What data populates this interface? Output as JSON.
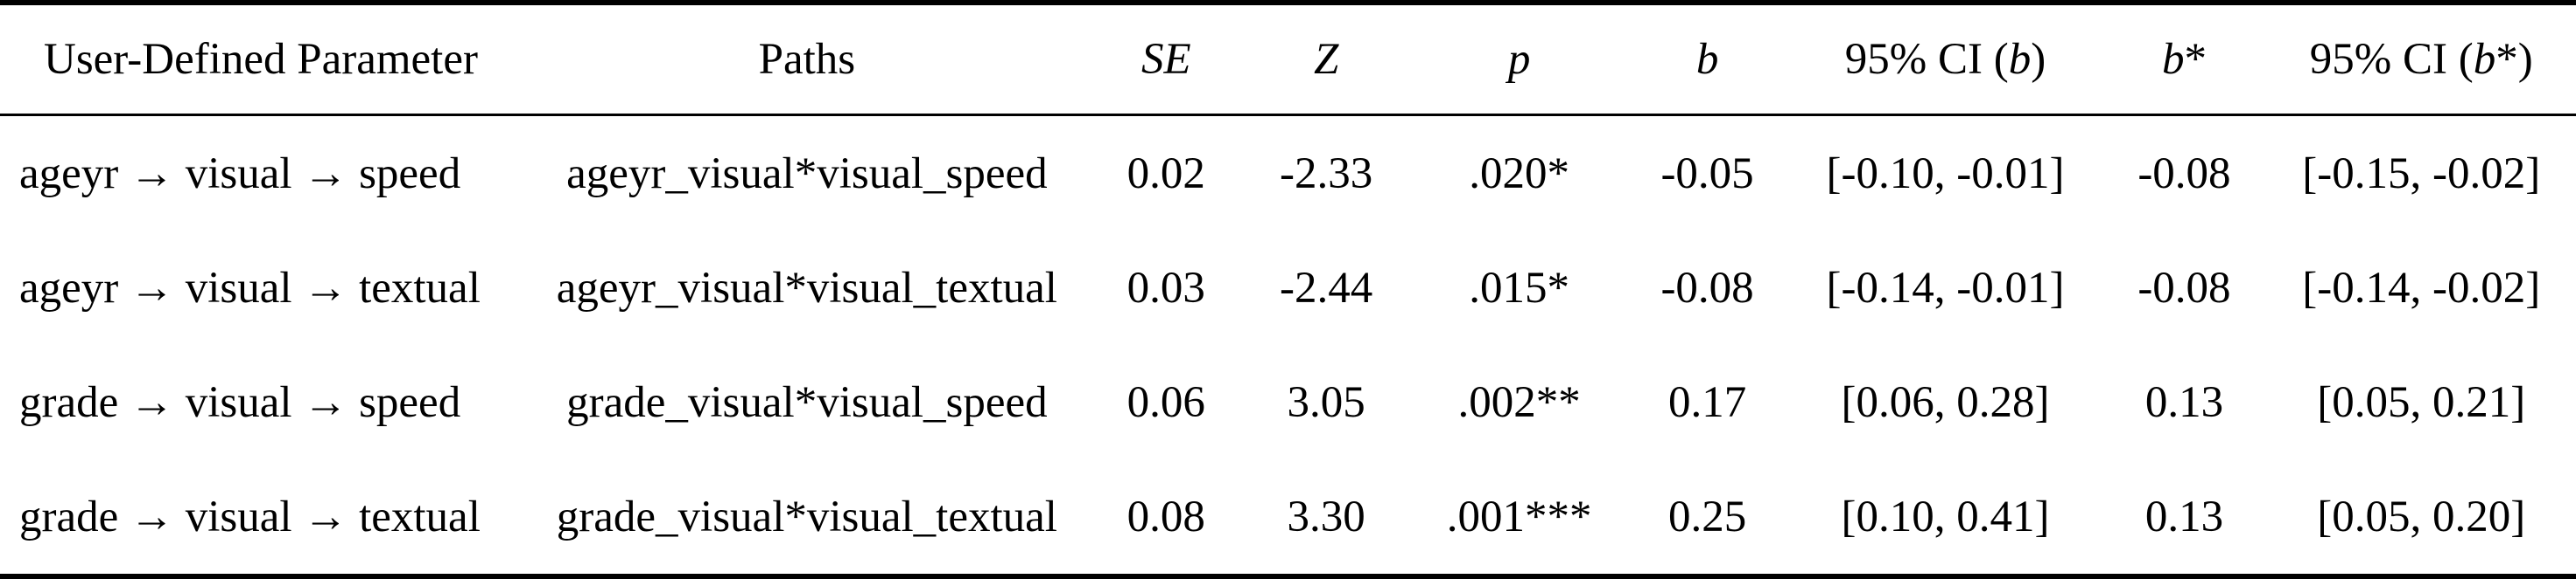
{
  "table": {
    "headers": [
      {
        "text": "User-Defined Parameter"
      },
      {
        "text": "Paths"
      },
      {
        "italic": "SE"
      },
      {
        "italic": "Z"
      },
      {
        "italic": "p"
      },
      {
        "italic": "b"
      },
      {
        "prefix": "95% CI (",
        "italic": "b",
        "suffix": ")"
      },
      {
        "italic": "b",
        "suffix": "*"
      },
      {
        "prefix": "95% CI (",
        "italic": "b",
        "suffix": "*)"
      }
    ],
    "rows": [
      {
        "cells": [
          "ageyr → visual → speed",
          "ageyr_visual*visual_speed",
          "0.02",
          "-2.33",
          ".020*",
          "-0.05",
          "[-0.10, -0.01]",
          "-0.08",
          "[-0.15, -0.02]"
        ]
      },
      {
        "cells": [
          "ageyr → visual → textual",
          "ageyr_visual*visual_textual",
          "0.03",
          "-2.44",
          ".015*",
          "-0.08",
          "[-0.14, -0.01]",
          "-0.08",
          "[-0.14, -0.02]"
        ]
      },
      {
        "cells": [
          "grade → visual → speed",
          "grade_visual*visual_speed",
          "0.06",
          "3.05",
          ".002**",
          "0.17",
          "[0.06, 0.28]",
          "0.13",
          "[0.05, 0.21]"
        ]
      },
      {
        "cells": [
          "grade → visual → textual",
          "grade_visual*visual_textual",
          "0.08",
          "3.30",
          ".001***",
          "0.25",
          "[0.10, 0.41]",
          "0.13",
          "[0.05, 0.20]"
        ]
      }
    ]
  },
  "colors": {
    "text": "#000000",
    "background": "#ffffff",
    "rule": "#000000"
  }
}
